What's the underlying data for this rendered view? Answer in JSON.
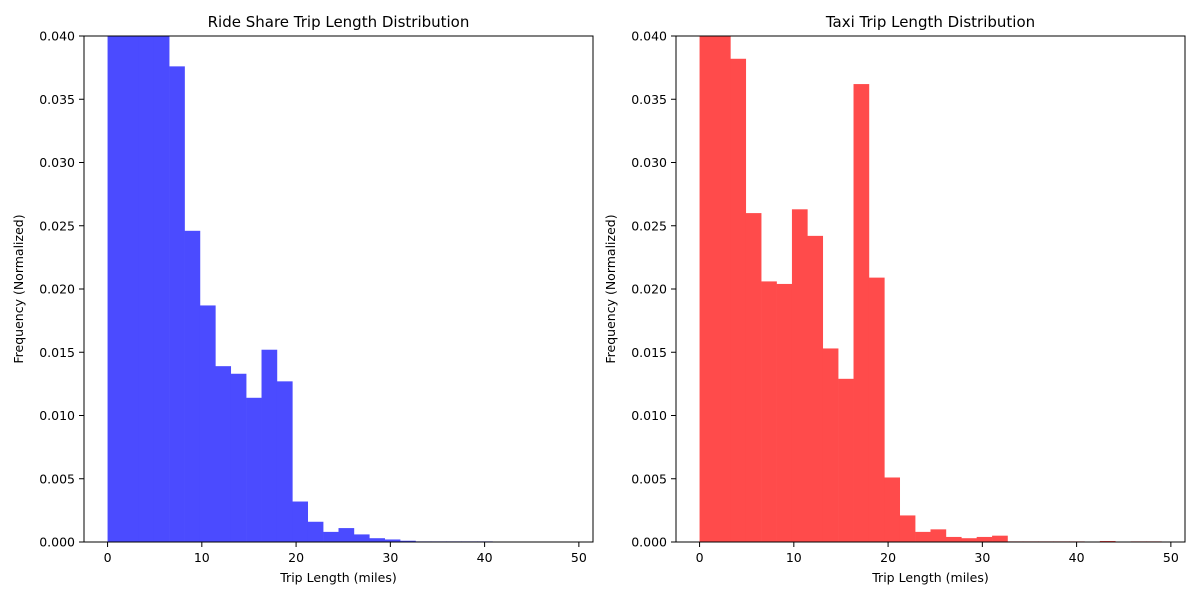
{
  "chart_data": [
    {
      "type": "bar",
      "title": "Ride Share Trip Length Distribution",
      "xlabel": "Trip Length (miles)",
      "ylabel": "Frequency (Normalized)",
      "color": "#4b4bff",
      "xlim": [
        -2.5,
        51.5
      ],
      "ylim": [
        0,
        0.04
      ],
      "xticks": [
        0,
        10,
        20,
        30,
        40,
        50
      ],
      "yticks": [
        "0.000",
        "0.005",
        "0.010",
        "0.015",
        "0.020",
        "0.025",
        "0.030",
        "0.035",
        "0.040"
      ],
      "bin_width": 1.6333,
      "bin_starts": [
        0,
        1.6333,
        3.2667,
        4.9,
        6.5333,
        8.1667,
        9.8,
        11.4333,
        13.0667,
        14.7,
        16.3333,
        17.9667,
        19.6,
        21.2333,
        22.8667,
        24.5,
        26.1333,
        27.7667,
        29.4,
        31.0333,
        32.6667,
        34.3,
        35.9333,
        37.5667,
        39.2,
        40.8333
      ],
      "values": [
        0.04,
        0.04,
        0.04,
        0.04,
        0.0376,
        0.0246,
        0.0187,
        0.0139,
        0.0133,
        0.0114,
        0.0152,
        0.0127,
        0.0032,
        0.0016,
        0.0008,
        0.0011,
        0.0006,
        0.0003,
        0.0002,
        0.0001,
        5e-05,
        5e-05,
        5e-05,
        5e-05,
        5e-05,
        3e-05
      ]
    },
    {
      "type": "bar",
      "title": "Taxi Trip Length Distribution",
      "xlabel": "Trip Length (miles)",
      "ylabel": "Frequency (Normalized)",
      "color": "#ff4b4b",
      "xlim": [
        -2.5,
        51.5
      ],
      "ylim": [
        0,
        0.04
      ],
      "xticks": [
        0,
        10,
        20,
        30,
        40,
        50
      ],
      "yticks": [
        "0.000",
        "0.005",
        "0.010",
        "0.015",
        "0.020",
        "0.025",
        "0.030",
        "0.035",
        "0.040"
      ],
      "bin_width": 1.6333,
      "bin_starts": [
        0,
        1.6333,
        3.2667,
        4.9,
        6.5333,
        8.1667,
        9.8,
        11.4333,
        13.0667,
        14.7,
        16.3333,
        17.9667,
        19.6,
        21.2333,
        22.8667,
        24.5,
        26.1333,
        27.7667,
        29.4,
        31.0333,
        32.6667,
        34.3,
        35.9333,
        37.5667,
        39.2,
        40.8333,
        42.4667,
        44.1,
        45.7333,
        47.3667
      ],
      "values": [
        0.04,
        0.04,
        0.0382,
        0.026,
        0.0206,
        0.0204,
        0.0263,
        0.0242,
        0.0153,
        0.0129,
        0.0362,
        0.0209,
        0.0051,
        0.0021,
        0.0008,
        0.001,
        0.0004,
        0.0003,
        0.0004,
        0.0005,
        5e-05,
        5e-05,
        5e-05,
        5e-05,
        5e-05,
        0.0,
        8e-05,
        0.0,
        5e-05,
        5e-05
      ]
    }
  ]
}
